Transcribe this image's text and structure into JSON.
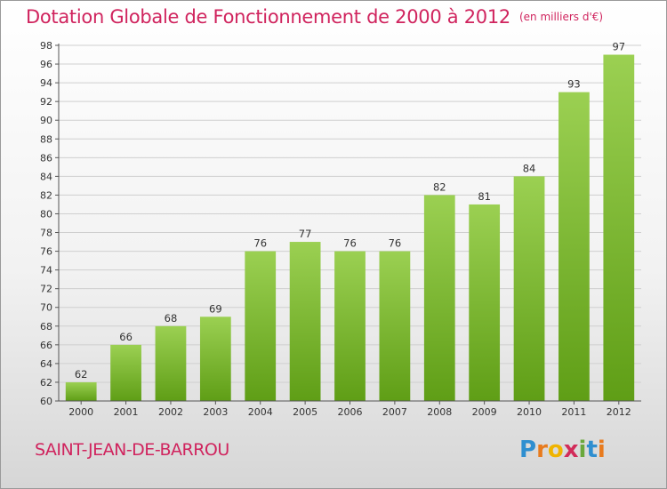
{
  "header": {
    "title": "Dotation Globale de Fonctionnement de 2000 à 2012",
    "unit_note": "(en milliers d'€)"
  },
  "footer": {
    "commune": "SAINT-JEAN-DE-BARROU"
  },
  "logo": {
    "letters": [
      "P",
      "r",
      "o",
      "x",
      "i",
      "t",
      "i"
    ],
    "colors": [
      "#2f8fd0",
      "#e87b1e",
      "#f0b400",
      "#d22c5a",
      "#6aa83c",
      "#2f8fd0",
      "#e87b1e"
    ]
  },
  "colors": {
    "bar_top": "#9bd052",
    "bar_bottom": "#5f9e16",
    "grid": "#cfcfcf",
    "axis": "#555555"
  },
  "chart_data": {
    "type": "bar",
    "title": "Dotation Globale de Fonctionnement de 2000 à 2012",
    "xlabel": "",
    "ylabel": "",
    "ylim": [
      60,
      98
    ],
    "ytick_step": 2,
    "grid": true,
    "categories": [
      "2000",
      "2001",
      "2002",
      "2003",
      "2004",
      "2005",
      "2006",
      "2007",
      "2008",
      "2009",
      "2010",
      "2011",
      "2012"
    ],
    "values": [
      62,
      66,
      68,
      69,
      76,
      77,
      76,
      76,
      82,
      81,
      84,
      93,
      97
    ]
  }
}
